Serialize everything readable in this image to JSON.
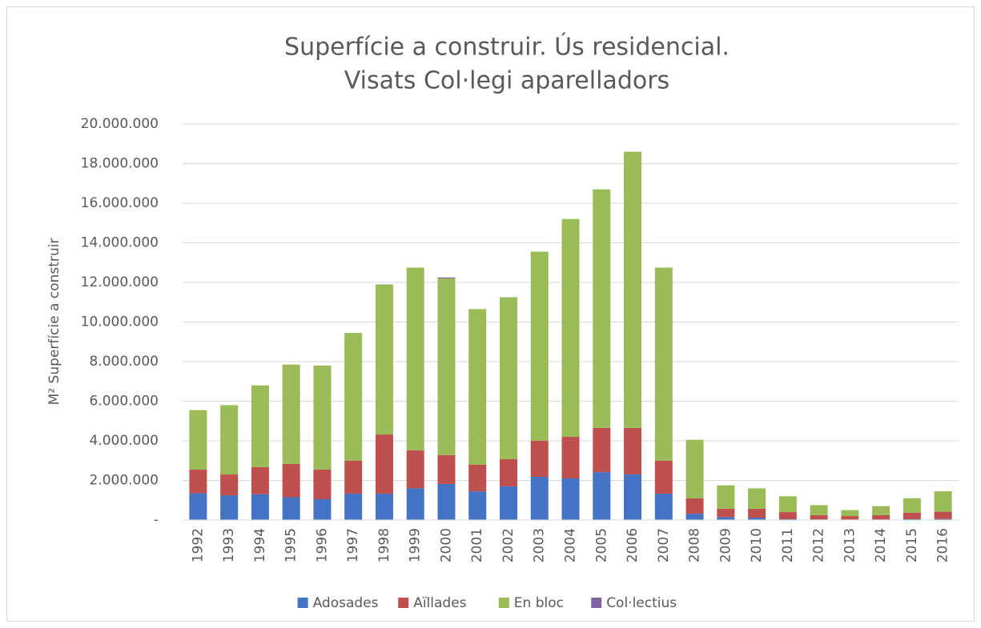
{
  "chart_data": {
    "type": "stacked_bar",
    "title": [
      "Superfície a construir. Ús residencial.",
      "Visats Col·legi aparelladors"
    ],
    "y_label": "M² Superfície a construir",
    "categories": [
      "1992",
      "1993",
      "1994",
      "1995",
      "1996",
      "1997",
      "1998",
      "1999",
      "2000",
      "2001",
      "2002",
      "2003",
      "2004",
      "2005",
      "2006",
      "2007",
      "2008",
      "2009",
      "2010",
      "2011",
      "2012",
      "2013",
      "2014",
      "2015",
      "2016"
    ],
    "series": [
      {
        "name": "Adosades",
        "color": "#4472c4",
        "values": [
          1350000,
          1250000,
          1300000,
          1150000,
          1050000,
          1330000,
          1330000,
          1600000,
          1820000,
          1450000,
          1700000,
          2180000,
          2100000,
          2420000,
          2300000,
          1330000,
          320000,
          150000,
          120000,
          40000,
          30000,
          30000,
          30000,
          40000,
          50000
        ]
      },
      {
        "name": "Aïllades",
        "color": "#c0504d",
        "values": [
          1200000,
          1050000,
          1370000,
          1680000,
          1500000,
          1670000,
          2990000,
          1920000,
          1460000,
          1350000,
          1370000,
          1820000,
          2100000,
          2230000,
          2350000,
          1670000,
          780000,
          420000,
          450000,
          360000,
          220000,
          170000,
          220000,
          330000,
          370000
        ]
      },
      {
        "name": "En bloc",
        "color": "#9bbb59",
        "values": [
          3000000,
          3500000,
          4130000,
          5020000,
          5250000,
          6450000,
          7580000,
          9230000,
          8920000,
          7850000,
          8180000,
          9550000,
          11000000,
          12050000,
          13950000,
          9750000,
          2950000,
          1180000,
          1030000,
          800000,
          500000,
          300000,
          450000,
          730000,
          1030000
        ]
      },
      {
        "name": "Col·lectius",
        "color": "#8064a2",
        "values": [
          0,
          0,
          0,
          0,
          0,
          0,
          0,
          0,
          50000,
          0,
          0,
          0,
          0,
          0,
          0,
          0,
          0,
          0,
          0,
          0,
          0,
          0,
          0,
          0,
          0
        ]
      }
    ],
    "ylim": [
      0,
      20000000
    ],
    "yticks": [
      {
        "value": 0,
        "label": "-"
      },
      {
        "value": 2000000,
        "label": "2.000.000"
      },
      {
        "value": 4000000,
        "label": "4.000.000"
      },
      {
        "value": 6000000,
        "label": "6.000.000"
      },
      {
        "value": 8000000,
        "label": "8.000.000"
      },
      {
        "value": 10000000,
        "label": "10.000.000"
      },
      {
        "value": 12000000,
        "label": "12.000.000"
      },
      {
        "value": 14000000,
        "label": "14.000.000"
      },
      {
        "value": 16000000,
        "label": "16.000.000"
      },
      {
        "value": 18000000,
        "label": "18.000.000"
      },
      {
        "value": 20000000,
        "label": "20.000.000"
      }
    ],
    "grid": true,
    "legend": "bottom"
  }
}
